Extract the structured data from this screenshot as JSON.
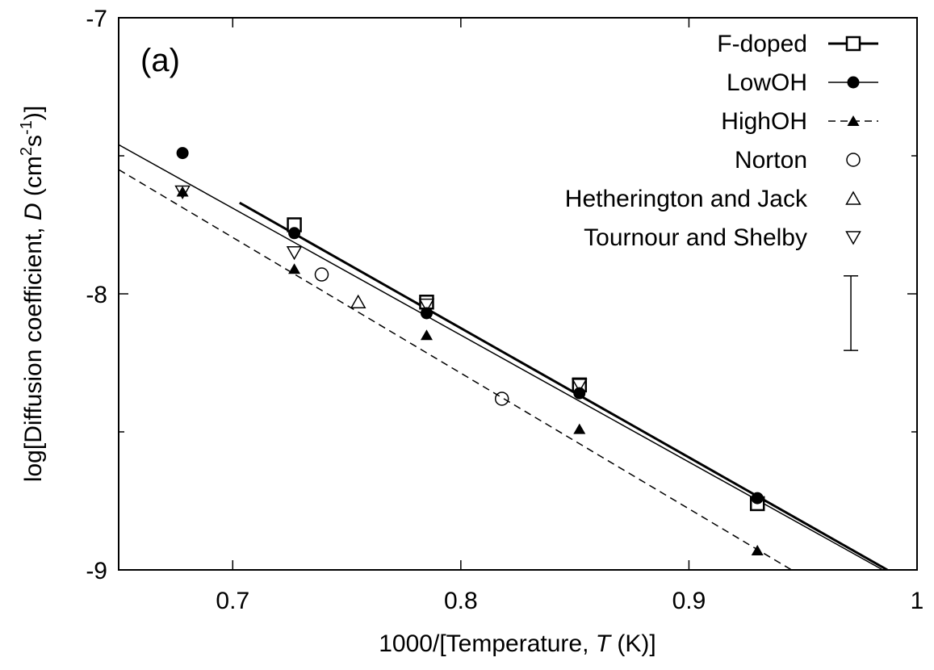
{
  "chart_data": {
    "type": "scatter",
    "panel_label": "(a)",
    "xlabel_prefix": "1000/[Temperature, ",
    "xlabel_var": "T",
    "xlabel_suffix": " (K)]",
    "ylabel_prefix": "log[Diffusion coefficient, ",
    "ylabel_var": "D",
    "ylabel_unit_open": " (cm",
    "ylabel_sup1": "2",
    "ylabel_unit_mid": "s",
    "ylabel_sup2": "-1",
    "ylabel_suffix": ")]",
    "xlim": [
      0.65,
      1.0
    ],
    "ylim": [
      -9,
      -7
    ],
    "x_ticks": [
      0.7,
      0.8,
      0.9,
      1.0
    ],
    "x_tick_labels": [
      "0.7",
      "0.8",
      "0.9",
      "1"
    ],
    "y_ticks": [
      -7,
      -8,
      -9
    ],
    "y_tick_labels": [
      "-7",
      "-8",
      "-9"
    ],
    "y_minor_ticks": [
      -7.5,
      -8.5
    ],
    "legend_position": "top-right",
    "grid": false,
    "series": [
      {
        "name": "F-doped",
        "marker": "open-square",
        "line": "solid-thick",
        "points": [
          [
            0.727,
            -7.75
          ],
          [
            0.785,
            -8.03
          ],
          [
            0.852,
            -8.33
          ],
          [
            0.93,
            -8.76
          ]
        ],
        "fit": [
          [
            0.703,
            -7.67
          ],
          [
            0.987,
            -9.0
          ]
        ]
      },
      {
        "name": "LowOH",
        "marker": "filled-circle",
        "line": "solid",
        "points": [
          [
            0.678,
            -7.49
          ],
          [
            0.727,
            -7.78
          ],
          [
            0.785,
            -8.07
          ],
          [
            0.852,
            -8.36
          ],
          [
            0.93,
            -8.74
          ]
        ],
        "fit": [
          [
            0.65,
            -7.46
          ],
          [
            0.985,
            -9.0
          ]
        ]
      },
      {
        "name": "HighOH",
        "marker": "filled-triangle",
        "line": "dashed",
        "points": [
          [
            0.678,
            -7.63
          ],
          [
            0.727,
            -7.91
          ],
          [
            0.785,
            -8.15
          ],
          [
            0.852,
            -8.49
          ],
          [
            0.93,
            -8.93
          ]
        ],
        "fit": [
          [
            0.65,
            -7.55
          ],
          [
            0.945,
            -9.0
          ]
        ]
      },
      {
        "name": "Norton",
        "marker": "open-circle",
        "line": "none",
        "points": [
          [
            0.739,
            -7.93
          ],
          [
            0.818,
            -8.38
          ]
        ]
      },
      {
        "name": "Hetherington and Jack",
        "marker": "open-triangle",
        "line": "none",
        "points": [
          [
            0.755,
            -8.03
          ]
        ]
      },
      {
        "name": "Tournour and Shelby",
        "marker": "open-triangle-down",
        "line": "none",
        "points": [
          [
            0.678,
            -7.63
          ],
          [
            0.727,
            -7.85
          ],
          [
            0.785,
            -8.04
          ],
          [
            0.852,
            -8.33
          ]
        ]
      }
    ],
    "error_bar": {
      "x": 0.971,
      "y_low": -8.205,
      "y_high": -7.935
    }
  }
}
